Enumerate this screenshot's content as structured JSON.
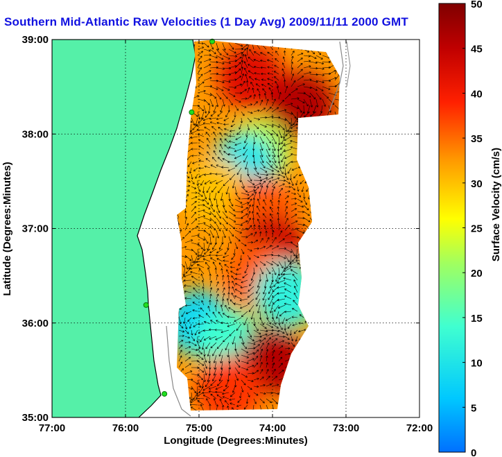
{
  "chart_data": {
    "type": "heatmap",
    "title": "Southern Mid-Atlantic Raw Velocities (1 Day Avg) 2009/11/11 2000 GMT",
    "xlabel": "Longitude (Degrees:Minutes)",
    "ylabel": "Latitude (Degrees:Minutes)",
    "colorbar_label": "Surface Velocity (cm/s)",
    "x_ticks": [
      {
        "value": -77,
        "label": "77:00"
      },
      {
        "value": -76,
        "label": "76:00"
      },
      {
        "value": -75,
        "label": "75:00"
      },
      {
        "value": -74,
        "label": "74:00"
      },
      {
        "value": -73,
        "label": "73:00"
      },
      {
        "value": -72,
        "label": "72:00"
      }
    ],
    "y_ticks": [
      {
        "value": 35,
        "label": "35:00"
      },
      {
        "value": 36,
        "label": "36:00"
      },
      {
        "value": 37,
        "label": "37:00"
      },
      {
        "value": 38,
        "label": "38:00"
      },
      {
        "value": 39,
        "label": "39:00"
      }
    ],
    "xlim": [
      -77,
      -72
    ],
    "ylim": [
      35,
      39
    ],
    "colorbar": {
      "range": [
        0,
        50
      ],
      "ticks": [
        {
          "value": 0,
          "label": "0"
        },
        {
          "value": 5,
          "label": "5"
        },
        {
          "value": 10,
          "label": "10"
        },
        {
          "value": 15,
          "label": "15"
        },
        {
          "value": 20,
          "label": "20"
        },
        {
          "value": 25,
          "label": "25"
        },
        {
          "value": 30,
          "label": "30"
        },
        {
          "value": 35,
          "label": "35"
        },
        {
          "value": 40,
          "label": "40"
        },
        {
          "value": 45,
          "label": "45"
        },
        {
          "value": 50,
          "label": "50"
        }
      ],
      "colormap": "jet"
    },
    "grid": true,
    "land_color": "#55f0a8",
    "velocity_regions": [
      {
        "lon": -74.3,
        "lat": 38.6,
        "speed": 42
      },
      {
        "lon": -73.6,
        "lat": 38.3,
        "speed": 46
      },
      {
        "lon": -74.2,
        "lat": 37.8,
        "speed": 22
      },
      {
        "lon": -74.4,
        "lat": 37.65,
        "speed": 10
      },
      {
        "lon": -74.8,
        "lat": 37.4,
        "speed": 30
      },
      {
        "lon": -74.1,
        "lat": 37.2,
        "speed": 36
      },
      {
        "lon": -74.0,
        "lat": 36.8,
        "speed": 44
      },
      {
        "lon": -74.2,
        "lat": 36.5,
        "speed": 36
      },
      {
        "lon": -73.8,
        "lat": 36.3,
        "speed": 12
      },
      {
        "lon": -75.0,
        "lat": 36.0,
        "speed": 8
      },
      {
        "lon": -74.6,
        "lat": 35.8,
        "speed": 14
      },
      {
        "lon": -74.0,
        "lat": 35.6,
        "speed": 46
      },
      {
        "lon": -74.6,
        "lat": 35.3,
        "speed": 38
      }
    ],
    "station_markers": [
      {
        "lon": -74.82,
        "lat": 38.98
      },
      {
        "lon": -75.1,
        "lat": 38.23
      },
      {
        "lon": -75.72,
        "lat": 36.19
      },
      {
        "lon": -75.47,
        "lat": 35.25
      }
    ]
  }
}
